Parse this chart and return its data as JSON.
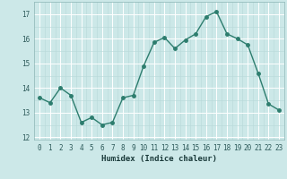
{
  "x": [
    0,
    1,
    2,
    3,
    4,
    5,
    6,
    7,
    8,
    9,
    10,
    11,
    12,
    13,
    14,
    15,
    16,
    17,
    18,
    19,
    20,
    21,
    22,
    23
  ],
  "y": [
    13.6,
    13.4,
    14.0,
    13.7,
    12.6,
    12.8,
    12.5,
    12.6,
    13.6,
    13.7,
    14.9,
    15.85,
    16.05,
    15.6,
    15.95,
    16.2,
    16.9,
    17.1,
    16.2,
    16.0,
    15.75,
    14.6,
    13.35,
    13.1
  ],
  "xlabel": "Humidex (Indice chaleur)",
  "xlim": [
    -0.5,
    23.5
  ],
  "ylim": [
    11.9,
    17.5
  ],
  "yticks": [
    12,
    13,
    14,
    15,
    16,
    17
  ],
  "xticks": [
    0,
    1,
    2,
    3,
    4,
    5,
    6,
    7,
    8,
    9,
    10,
    11,
    12,
    13,
    14,
    15,
    16,
    17,
    18,
    19,
    20,
    21,
    22,
    23
  ],
  "line_color": "#2d7d6e",
  "marker_size": 2.5,
  "line_width": 1.0,
  "bg_color": "#cce8e8",
  "grid_color": "#ffffff",
  "subgrid_color": "#b8d8d8",
  "tick_fontsize": 5.5,
  "xlabel_fontsize": 6.5
}
